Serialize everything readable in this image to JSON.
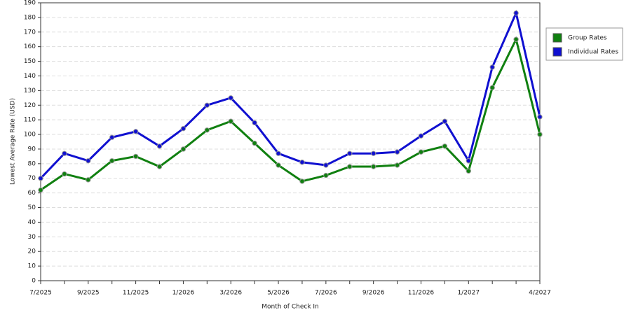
{
  "chart_data": {
    "type": "line",
    "x_label": "Month of Check In",
    "y_label": "Lowest Average Rate (USD)",
    "categories": [
      "7/2025",
      null,
      "9/2025",
      null,
      "11/2025",
      null,
      "1/2026",
      null,
      "3/2026",
      null,
      "5/2026",
      null,
      "7/2026",
      null,
      "9/2026",
      null,
      "11/2026",
      null,
      "1/2027",
      null,
      null,
      "4/2027"
    ],
    "series": [
      {
        "name": "Group Rates",
        "color": "#108010",
        "values": [
          62,
          73,
          69,
          82,
          85,
          78,
          90,
          103,
          109,
          94,
          79,
          68,
          72,
          78,
          78,
          79,
          88,
          92,
          75,
          132,
          165,
          100
        ]
      },
      {
        "name": "Individual Rates",
        "color": "#1010d0",
        "values": [
          70,
          87,
          82,
          98,
          102,
          92,
          104,
          120,
          125,
          108,
          87,
          81,
          79,
          87,
          87,
          88,
          99,
          109,
          82,
          146,
          183,
          112
        ]
      }
    ],
    "ylim": [
      0,
      190
    ],
    "yticks": [
      0,
      10,
      20,
      30,
      40,
      50,
      60,
      70,
      80,
      90,
      100,
      110,
      120,
      130,
      140,
      150,
      160,
      170,
      180,
      190
    ],
    "grid": true,
    "legend": "right"
  }
}
